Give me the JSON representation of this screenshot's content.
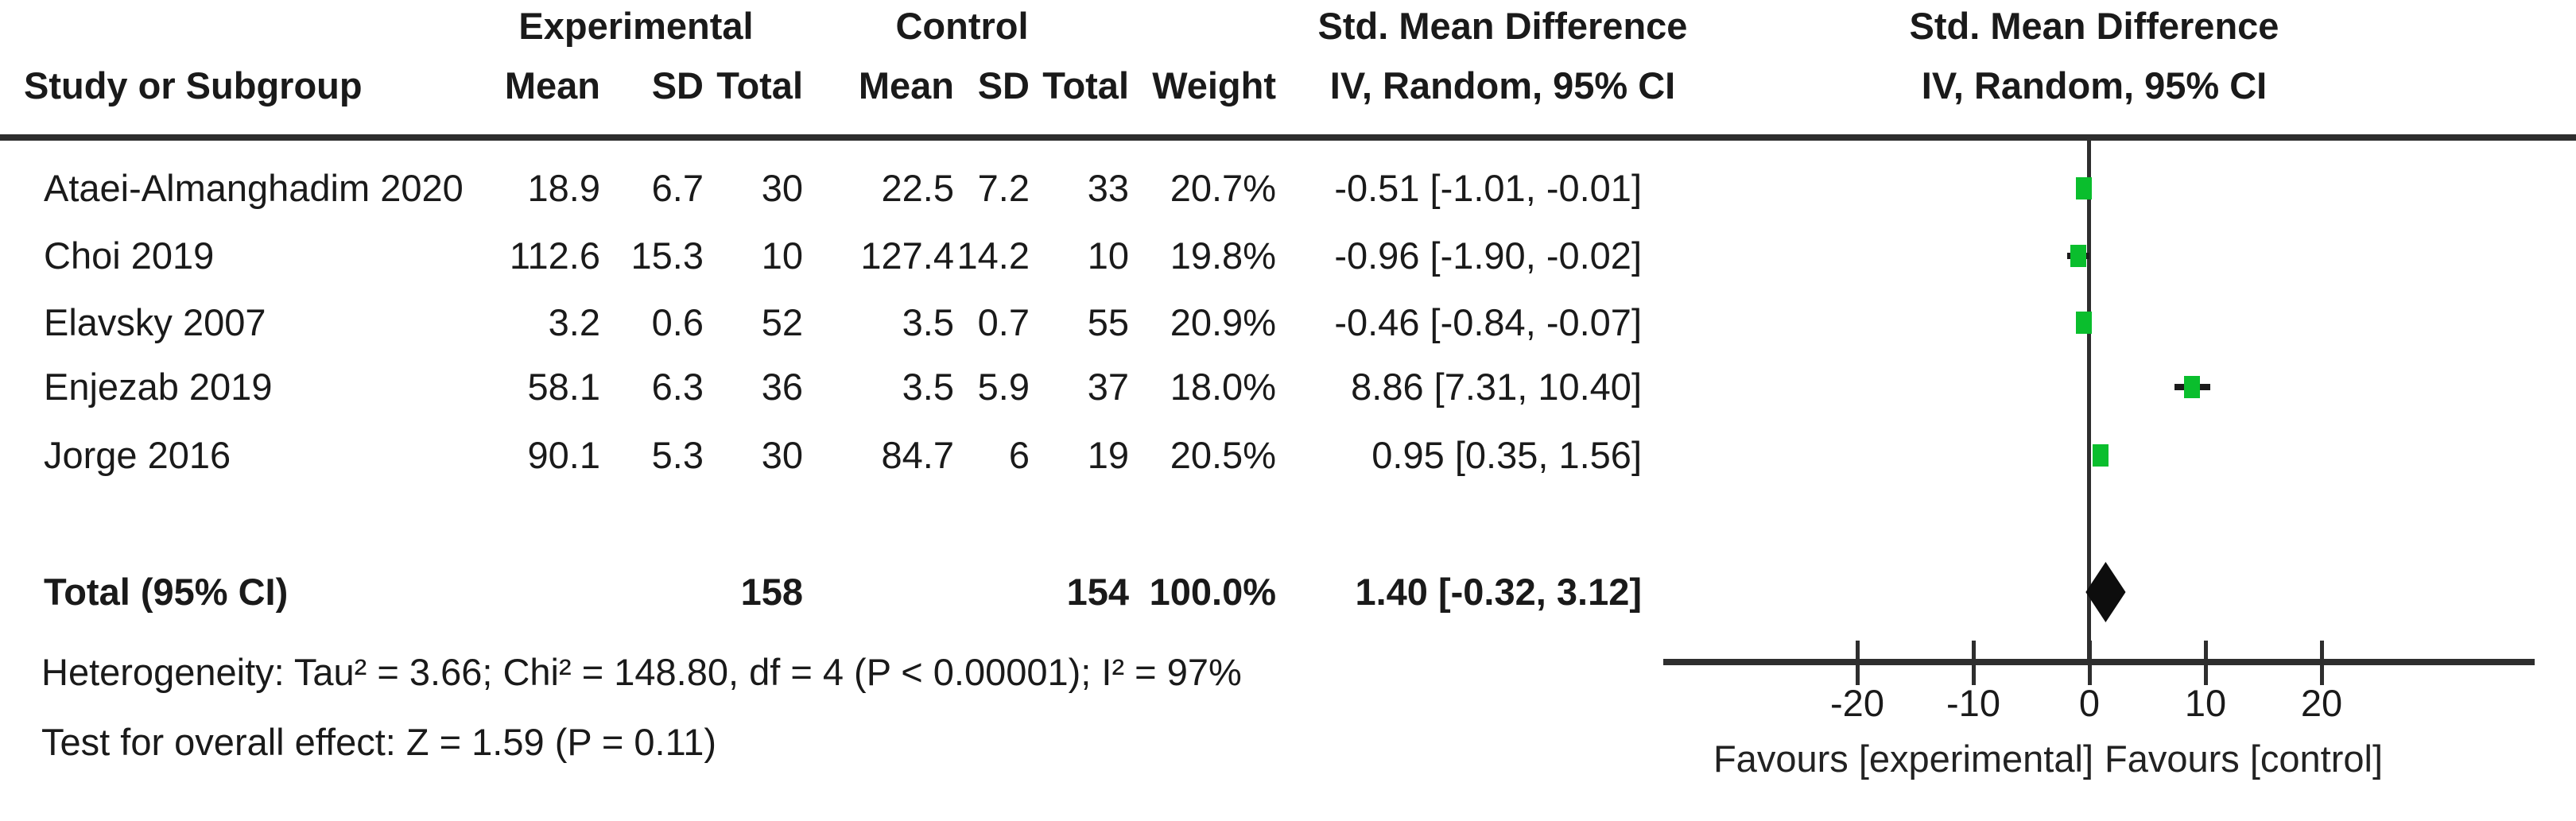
{
  "header": {
    "study": "Study or Subgroup",
    "group_experimental": "Experimental",
    "group_control": "Control",
    "mean": "Mean",
    "sd": "SD",
    "total": "Total",
    "weight": "Weight",
    "smd_line1": "Std. Mean Difference",
    "smd_line2": "IV, Random, 95% CI",
    "plot_line1": "Std. Mean Difference",
    "plot_line2": "IV, Random, 95% CI"
  },
  "studies": [
    {
      "name": "Ataei-Almanghadim 2020",
      "exp_mean": "18.9",
      "exp_sd": "6.7",
      "exp_total": "30",
      "ctl_mean": "22.5",
      "ctl_sd": "7.2",
      "ctl_total": "33",
      "weight": "20.7%",
      "ci_text": "-0.51 [-1.01, -0.01]"
    },
    {
      "name": "Choi 2019",
      "exp_mean": "112.6",
      "exp_sd": "15.3",
      "exp_total": "10",
      "ctl_mean": "127.4",
      "ctl_sd": "14.2",
      "ctl_total": "10",
      "weight": "19.8%",
      "ci_text": "-0.96 [-1.90, -0.02]"
    },
    {
      "name": "Elavsky 2007",
      "exp_mean": "3.2",
      "exp_sd": "0.6",
      "exp_total": "52",
      "ctl_mean": "3.5",
      "ctl_sd": "0.7",
      "ctl_total": "55",
      "weight": "20.9%",
      "ci_text": "-0.46 [-0.84, -0.07]"
    },
    {
      "name": "Enjezab 2019",
      "exp_mean": "58.1",
      "exp_sd": "6.3",
      "exp_total": "36",
      "ctl_mean": "3.5",
      "ctl_sd": "5.9",
      "ctl_total": "37",
      "weight": "18.0%",
      "ci_text": "8.86 [7.31, 10.40]"
    },
    {
      "name": "Jorge 2016",
      "exp_mean": "90.1",
      "exp_sd": "5.3",
      "exp_total": "30",
      "ctl_mean": "84.7",
      "ctl_sd": "6",
      "ctl_total": "19",
      "weight": "20.5%",
      "ci_text": "0.95 [0.35, 1.56]"
    }
  ],
  "total_row": {
    "label": "Total (95% CI)",
    "exp_total": "158",
    "ctl_total": "154",
    "weight": "100.0%",
    "ci_text": "1.40 [-0.32, 3.12]"
  },
  "footnotes": {
    "heterogeneity": "Heterogeneity: Tau² = 3.66; Chi² = 148.80, df = 4 (P < 0.00001); I² = 97%",
    "overall_effect": "Test for overall effect: Z = 1.59 (P = 0.11)"
  },
  "axis": {
    "tick_labels": [
      "-20",
      "-10",
      "0",
      "10",
      "20"
    ],
    "favours_left": "Favours [experimental]",
    "favours_right": "Favours [control]"
  },
  "colors": {
    "marker_green": "#0abe2d",
    "diamond_black": "#0d0d0d",
    "line_dark": "#2e2e2e",
    "text": "#1a1a1a"
  },
  "chart_data": {
    "type": "forest",
    "effect_label": "Std. Mean Difference",
    "method": "IV, Random, 95% CI",
    "x_ticks": [
      -20,
      -10,
      0,
      10,
      20
    ],
    "xlim": [
      -36.5,
      38
    ],
    "studies": [
      {
        "name": "Ataei-Almanghadim 2020",
        "smd": -0.51,
        "ci_low": -1.01,
        "ci_high": -0.01,
        "weight_pct": 20.7
      },
      {
        "name": "Choi 2019",
        "smd": -0.96,
        "ci_low": -1.9,
        "ci_high": -0.02,
        "weight_pct": 19.8
      },
      {
        "name": "Elavsky 2007",
        "smd": -0.46,
        "ci_low": -0.84,
        "ci_high": -0.07,
        "weight_pct": 20.9
      },
      {
        "name": "Enjezab 2019",
        "smd": 8.86,
        "ci_low": 7.31,
        "ci_high": 10.4,
        "weight_pct": 18.0
      },
      {
        "name": "Jorge 2016",
        "smd": 0.95,
        "ci_low": 0.35,
        "ci_high": 1.56,
        "weight_pct": 20.5
      }
    ],
    "total": {
      "name": "Total (95% CI)",
      "smd": 1.4,
      "ci_low": -0.32,
      "ci_high": 3.12,
      "weight_pct": 100.0
    },
    "heterogeneity": {
      "tau2": 3.66,
      "chi2": 148.8,
      "df": 4,
      "p": "< 0.00001",
      "i2_pct": 97
    },
    "overall_effect": {
      "z": 1.59,
      "p": 0.11
    },
    "favours": [
      "Favours [experimental]",
      "Favours [control]"
    ]
  }
}
